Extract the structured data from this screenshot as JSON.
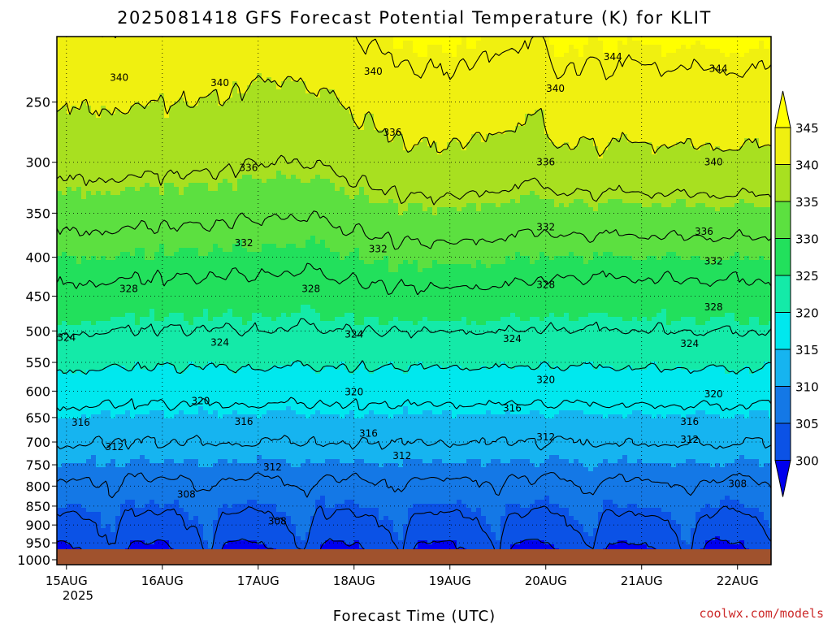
{
  "chart_data": {
    "type": "contour",
    "title": "2025081418 GFS Forecast Potential Temperature (K) for KLIT",
    "xlabel": "Forecast Time (UTC)",
    "x_ticks": [
      "15AUG",
      "16AUG",
      "17AUG",
      "18AUG",
      "19AUG",
      "20AUG",
      "21AUG",
      "22AUG"
    ],
    "x_year_label": "2025",
    "y_ticks": [
      250,
      300,
      350,
      400,
      450,
      500,
      550,
      600,
      650,
      700,
      750,
      800,
      850,
      900,
      950,
      1000
    ],
    "y_unit": "hPa",
    "y_scale": "log",
    "y_range_hpa": [
      205,
      1015
    ],
    "x_range_days": [
      -0.1,
      7.35
    ],
    "colorbar": {
      "levels": [
        300,
        305,
        310,
        315,
        320,
        325,
        330,
        335,
        340,
        345
      ],
      "colors": [
        "#0000ee",
        "#0b52e6",
        "#1478e6",
        "#16b4f0",
        "#00e8ee",
        "#14eaa8",
        "#22e05c",
        "#5ce040",
        "#a8e020",
        "#f0f010",
        "#ffff00"
      ]
    },
    "contour_interval_K": 4,
    "contour_labels": [
      {
        "day": 0.55,
        "p": 232,
        "v": "340"
      },
      {
        "day": 1.6,
        "p": 236,
        "v": "340"
      },
      {
        "day": 3.2,
        "p": 228,
        "v": "340"
      },
      {
        "day": 5.1,
        "p": 240,
        "v": "340"
      },
      {
        "day": 5.7,
        "p": 218,
        "v": "344"
      },
      {
        "day": 6.8,
        "p": 226,
        "v": "344"
      },
      {
        "day": 3.4,
        "p": 274,
        "v": "336"
      },
      {
        "day": 1.9,
        "p": 305,
        "v": "336"
      },
      {
        "day": 5.0,
        "p": 300,
        "v": "336"
      },
      {
        "day": 6.75,
        "p": 300,
        "v": "340"
      },
      {
        "day": 5.0,
        "p": 365,
        "v": "332"
      },
      {
        "day": 6.65,
        "p": 370,
        "v": "336"
      },
      {
        "day": 1.85,
        "p": 383,
        "v": "332"
      },
      {
        "day": 3.25,
        "p": 390,
        "v": "332"
      },
      {
        "day": 6.75,
        "p": 405,
        "v": "332"
      },
      {
        "day": 0.65,
        "p": 440,
        "v": "328"
      },
      {
        "day": 2.55,
        "p": 440,
        "v": "328"
      },
      {
        "day": 5.0,
        "p": 435,
        "v": "328"
      },
      {
        "day": 6.75,
        "p": 465,
        "v": "328"
      },
      {
        "day": 0.0,
        "p": 510,
        "v": "324"
      },
      {
        "day": 1.6,
        "p": 518,
        "v": "324"
      },
      {
        "day": 3.0,
        "p": 505,
        "v": "324"
      },
      {
        "day": 4.65,
        "p": 512,
        "v": "324"
      },
      {
        "day": 6.5,
        "p": 520,
        "v": "324"
      },
      {
        "day": 5.0,
        "p": 580,
        "v": "320"
      },
      {
        "day": 1.4,
        "p": 618,
        "v": "320"
      },
      {
        "day": 3.0,
        "p": 602,
        "v": "320"
      },
      {
        "day": 6.75,
        "p": 605,
        "v": "320"
      },
      {
        "day": 4.65,
        "p": 632,
        "v": "316"
      },
      {
        "day": 0.15,
        "p": 660,
        "v": "316"
      },
      {
        "day": 1.85,
        "p": 658,
        "v": "316"
      },
      {
        "day": 3.15,
        "p": 682,
        "v": "316"
      },
      {
        "day": 6.5,
        "p": 658,
        "v": "316"
      },
      {
        "day": 0.5,
        "p": 710,
        "v": "312"
      },
      {
        "day": 5.0,
        "p": 690,
        "v": "312"
      },
      {
        "day": 6.5,
        "p": 695,
        "v": "312"
      },
      {
        "day": 3.5,
        "p": 730,
        "v": "312"
      },
      {
        "day": 2.15,
        "p": 755,
        "v": "312"
      },
      {
        "day": 1.25,
        "p": 820,
        "v": "308"
      },
      {
        "day": 2.2,
        "p": 890,
        "v": "308"
      },
      {
        "day": 7.0,
        "p": 795,
        "v": "308"
      },
      {
        "day": 5.1,
        "p": 990,
        "v": "308"
      }
    ],
    "ground_color": "#a0522d"
  },
  "credit": "coolwx.com/models"
}
